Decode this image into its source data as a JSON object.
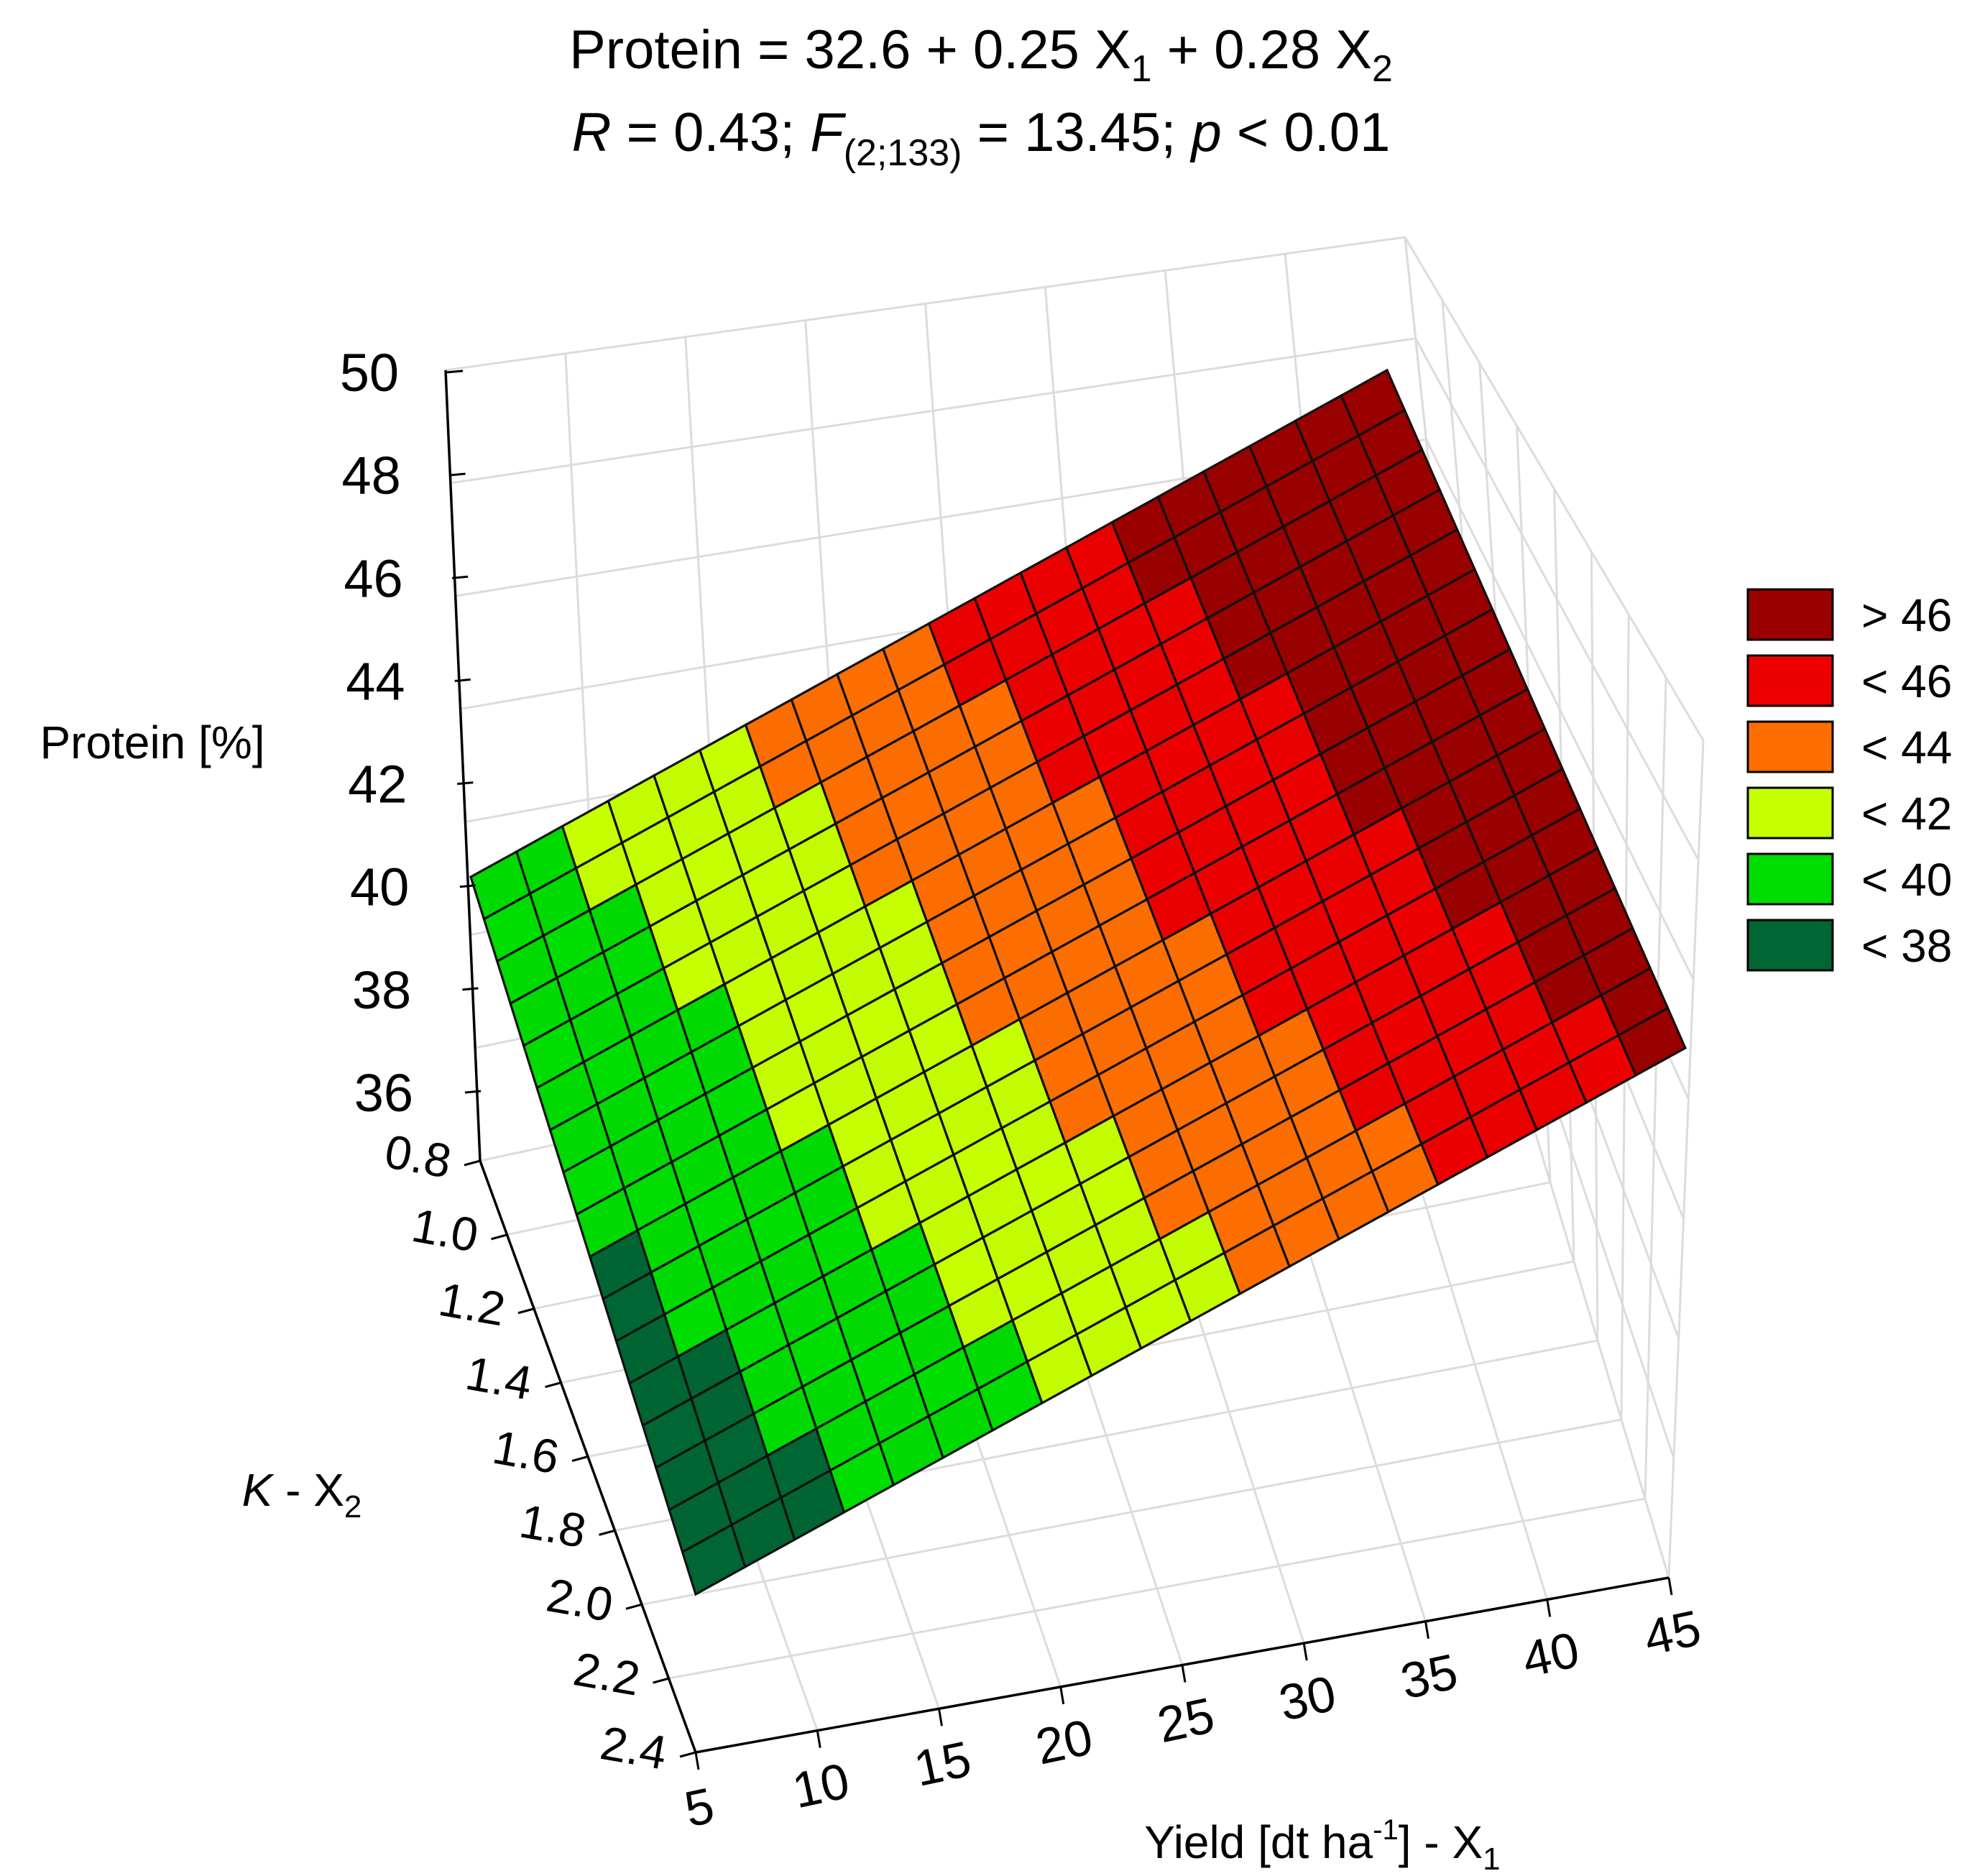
{
  "chart_data": {
    "type": "surface3d",
    "title": {
      "line1_prefix": "Protein = 32.6 + 0.25 X",
      "line1_sub1": "1",
      "line1_mid": " + 0.28 X",
      "line1_sub2": "2",
      "line2_r": "R",
      "line2_a": " = 0.43; ",
      "line2_f": "F",
      "line2_fsub": "(2;133)",
      "line2_b": " = 13.45; ",
      "line2_p": "p",
      "line2_c": " < 0.01"
    },
    "equation": {
      "intercept": 32.6,
      "coef_x1": 0.25,
      "coef_x2": 0.28
    },
    "zlabel": "Protein [%]",
    "ylabel": {
      "italic": "K",
      "text": " - X",
      "sub": "2"
    },
    "xlabel": {
      "text": "Yield [dt ha",
      "sup": "-1",
      "text2": "] - X",
      "sub": "1"
    },
    "x_ticks": [
      "5",
      "10",
      "15",
      "20",
      "25",
      "30",
      "35",
      "40",
      "45"
    ],
    "y_ticks": [
      "0.8",
      "1.0",
      "1.2",
      "1.4",
      "1.6",
      "1.8",
      "2.0",
      "2.2",
      "2.4"
    ],
    "z_ticks": [
      "36",
      "38",
      "40",
      "42",
      "44",
      "46",
      "48",
      "50"
    ],
    "xlim": [
      5,
      45
    ],
    "ylim": [
      0.8,
      2.4
    ],
    "zlim": [
      36,
      50
    ],
    "grid": true,
    "legend_position": "right",
    "legend": [
      {
        "label": "> 46",
        "color": "#9b0000"
      },
      {
        "label": "< 46",
        "color": "#ee0000"
      },
      {
        "label": "< 44",
        "color": "#ff6e00"
      },
      {
        "label": "< 42",
        "color": "#c6ff00"
      },
      {
        "label": "< 40",
        "color": "#00dd00"
      },
      {
        "label": "< 38",
        "color": "#006633"
      }
    ]
  }
}
